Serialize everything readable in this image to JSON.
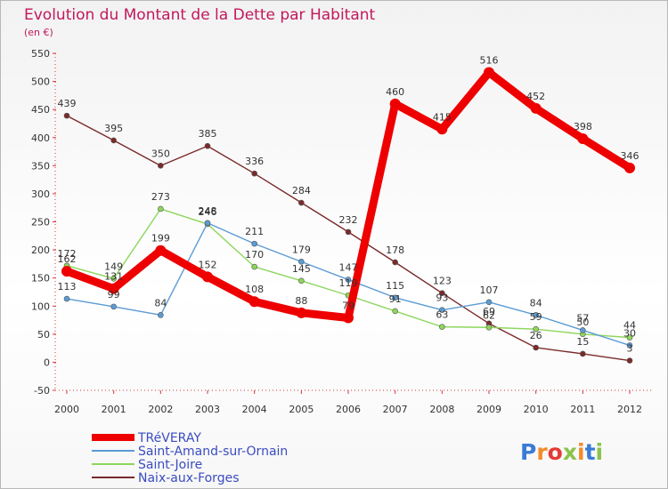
{
  "chart_data": {
    "type": "line",
    "title": "Evolution du Montant de la Dette par Habitant",
    "subtitle": "(en €)",
    "xlabel": "",
    "ylabel": "",
    "ylim": [
      -50,
      550
    ],
    "yticks": [
      -50,
      0,
      50,
      100,
      150,
      200,
      250,
      300,
      350,
      400,
      450,
      500,
      550
    ],
    "grid": false,
    "legend": "bottom-left",
    "x": [
      "2000",
      "2001",
      "2002",
      "2003",
      "2004",
      "2005",
      "2006",
      "2007",
      "2008",
      "2009",
      "2010",
      "2011",
      "2012"
    ],
    "series": [
      {
        "name": "TRéVERAY",
        "color": "#ee0000",
        "values": [
          162,
          131,
          199,
          152,
          108,
          88,
          79,
          460,
          415,
          516,
          452,
          398,
          346
        ],
        "labels": [
          "162",
          "131",
          "199",
          "152",
          "108",
          "88",
          "79",
          "460",
          "415",
          "516",
          "452",
          "398",
          "346"
        ]
      },
      {
        "name": "Saint-Amand-sur-Ornain",
        "color": "#5b9bd5",
        "values": [
          113,
          99,
          84,
          248,
          211,
          179,
          147,
          115,
          93,
          107,
          84,
          57,
          30
        ],
        "labels": [
          "113",
          "99",
          "84",
          "248",
          "211",
          "179",
          "147",
          "115",
          "93",
          "107",
          "84",
          "57",
          "30"
        ]
      },
      {
        "name": "Saint-Joire",
        "color": "#8dd65c",
        "values": [
          172,
          149,
          273,
          246,
          170,
          145,
          119,
          91,
          63,
          62,
          59,
          50,
          44
        ],
        "labels": [
          "172",
          "149",
          "273",
          "246",
          "170",
          "145",
          "119",
          "91",
          "63",
          "62",
          "59",
          "50",
          "44"
        ]
      },
      {
        "name": "Naix-aux-Forges",
        "color": "#7b2a2a",
        "values": [
          439,
          395,
          350,
          385,
          336,
          284,
          232,
          178,
          123,
          69,
          26,
          15,
          3
        ],
        "labels": [
          "439",
          "395",
          "350",
          "385",
          "336",
          "284",
          "232",
          "178",
          "123",
          "69",
          "26",
          "15",
          "3"
        ]
      }
    ]
  },
  "brand": {
    "logo_text": "Proxiti",
    "letter_colors": [
      "#3a7bd5",
      "#f28c28",
      "#e53935",
      "#8bc34a",
      "#f28c28",
      "#3a7bd5",
      "#8bc34a"
    ]
  }
}
